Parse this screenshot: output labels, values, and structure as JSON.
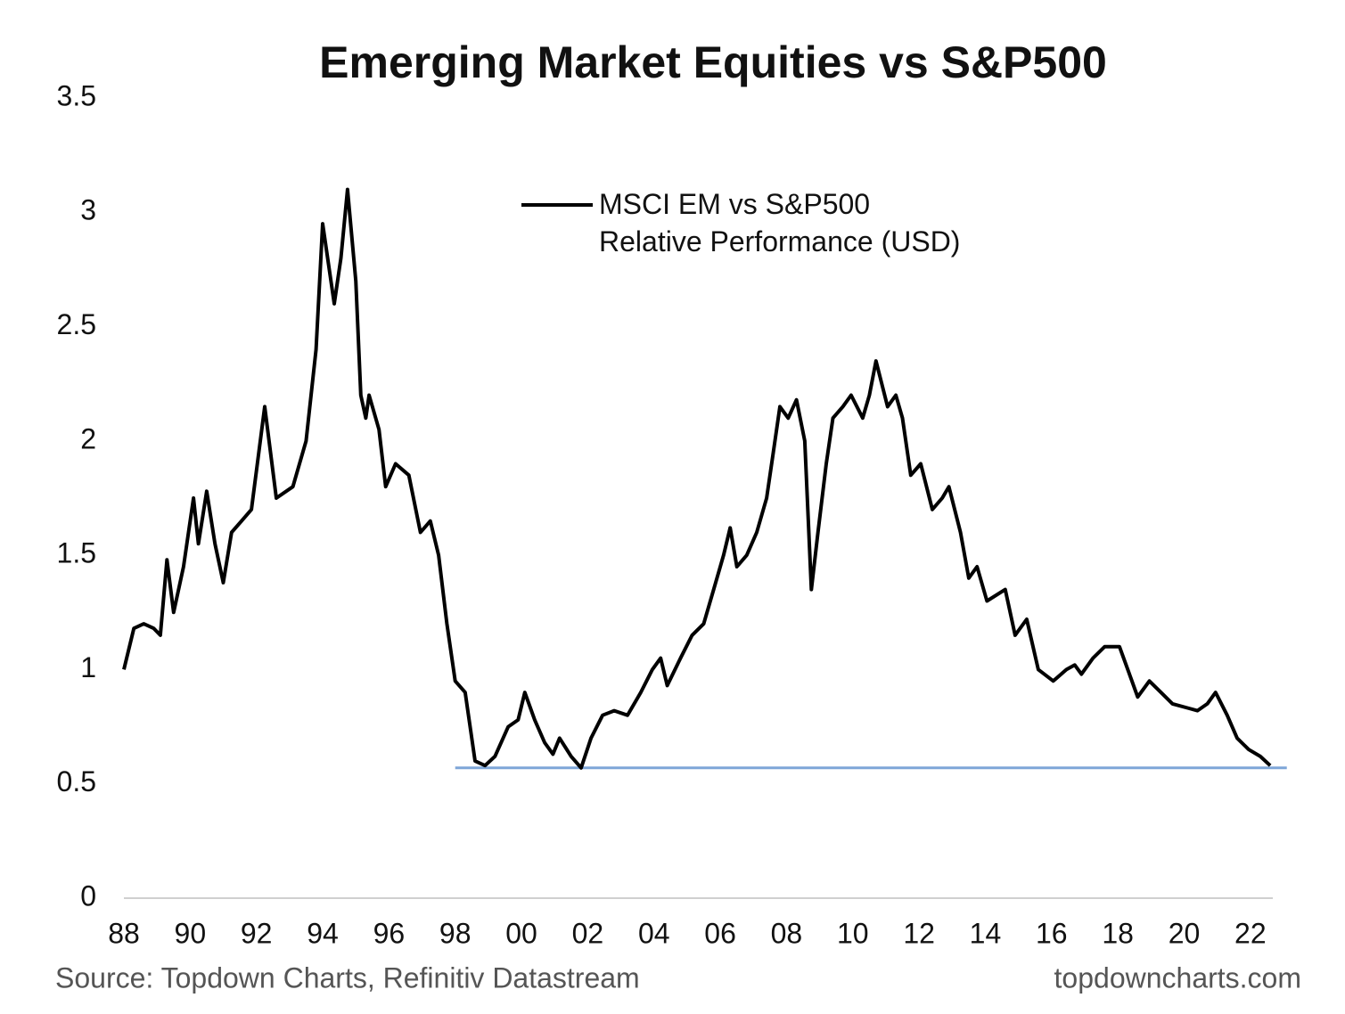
{
  "chart_data": {
    "type": "line",
    "title": "Emerging Market Equities vs S&P500",
    "source": "Source: Topdown Charts, Refinitiv Datastream",
    "credit": "topdowncharts.com",
    "series": [
      {
        "name": "MSCI EM vs S&P500\nRelative Performance (USD)",
        "color": "#000000",
        "values": [
          1.0,
          1.18,
          1.2,
          1.18,
          1.15,
          1.48,
          1.25,
          1.45,
          1.75,
          1.55,
          1.78,
          1.55,
          1.38,
          1.6,
          1.65,
          1.7,
          2.15,
          1.75,
          1.8,
          2.0,
          2.4,
          2.95,
          2.6,
          2.8,
          3.1,
          2.7,
          2.2,
          2.1,
          2.2,
          2.05,
          1.8,
          1.9,
          1.85,
          1.6,
          1.65,
          1.5,
          1.2,
          0.95,
          0.9,
          0.6,
          0.58,
          0.62,
          0.75,
          0.78,
          0.9,
          0.78,
          0.68,
          0.63,
          0.7,
          0.62,
          0.57,
          0.7,
          0.8,
          0.82,
          0.8,
          0.9,
          1.0,
          1.05,
          0.93,
          1.05,
          1.15,
          1.2,
          1.35,
          1.5,
          1.62,
          1.45,
          1.5,
          1.6,
          1.75,
          1.95,
          2.15,
          2.1,
          2.18,
          2.0,
          1.35,
          1.6,
          1.9,
          2.1,
          2.15,
          2.2,
          2.1,
          2.2,
          2.35,
          2.15,
          2.2,
          2.1,
          1.85,
          1.9,
          1.7,
          1.75,
          1.8,
          1.6,
          1.4,
          1.45,
          1.3,
          1.35,
          1.15,
          1.22,
          1.0,
          0.95,
          1.0,
          1.02,
          0.98,
          1.05,
          1.1,
          1.1,
          1.0,
          0.88,
          0.95,
          0.9,
          0.85,
          0.83,
          0.82,
          0.85,
          0.9,
          0.8,
          0.7,
          0.65,
          0.62,
          0.58
        ]
      }
    ],
    "x": [
      1988.0,
      1988.3,
      1988.6,
      1988.9,
      1989.1,
      1989.3,
      1989.5,
      1989.8,
      1990.1,
      1990.25,
      1990.5,
      1990.75,
      1991.0,
      1991.25,
      1991.55,
      1991.85,
      1992.25,
      1992.6,
      1993.1,
      1993.5,
      1993.8,
      1994.0,
      1994.35,
      1994.55,
      1994.75,
      1995.0,
      1995.15,
      1995.3,
      1995.4,
      1995.7,
      1995.9,
      1996.2,
      1996.6,
      1996.95,
      1997.25,
      1997.5,
      1997.75,
      1998.0,
      1998.3,
      1998.6,
      1998.9,
      1999.2,
      1999.6,
      1999.9,
      2000.1,
      2000.4,
      2000.7,
      2000.95,
      2001.15,
      2001.5,
      2001.8,
      2002.1,
      2002.45,
      2002.8,
      2003.2,
      2003.6,
      2003.95,
      2004.2,
      2004.4,
      2004.8,
      2005.15,
      2005.5,
      2005.8,
      2006.1,
      2006.3,
      2006.5,
      2006.8,
      2007.1,
      2007.4,
      2007.6,
      2007.8,
      2008.05,
      2008.3,
      2008.55,
      2008.75,
      2008.95,
      2009.2,
      2009.4,
      2009.7,
      2009.95,
      2010.3,
      2010.5,
      2010.7,
      2011.05,
      2011.3,
      2011.5,
      2011.75,
      2012.05,
      2012.4,
      2012.7,
      2012.9,
      2013.25,
      2013.5,
      2013.75,
      2014.05,
      2014.6,
      2014.9,
      2015.25,
      2015.6,
      2016.05,
      2016.45,
      2016.7,
      2016.9,
      2017.25,
      2017.6,
      2018.05,
      2018.3,
      2018.6,
      2018.95,
      2019.3,
      2019.65,
      2020.15,
      2020.4,
      2020.7,
      2020.95,
      2021.3,
      2021.6,
      2021.95,
      2022.3,
      2022.6
    ],
    "xlim": [
      1988,
      2023
    ],
    "xticks": [
      {
        "value": 1988,
        "label": "88"
      },
      {
        "value": 1990,
        "label": "90"
      },
      {
        "value": 1992,
        "label": "92"
      },
      {
        "value": 1994,
        "label": "94"
      },
      {
        "value": 1996,
        "label": "96"
      },
      {
        "value": 1998,
        "label": "98"
      },
      {
        "value": 2000,
        "label": "00"
      },
      {
        "value": 2002,
        "label": "02"
      },
      {
        "value": 2004,
        "label": "04"
      },
      {
        "value": 2006,
        "label": "06"
      },
      {
        "value": 2008,
        "label": "08"
      },
      {
        "value": 2010,
        "label": "10"
      },
      {
        "value": 2012,
        "label": "12"
      },
      {
        "value": 2014,
        "label": "14"
      },
      {
        "value": 2016,
        "label": "16"
      },
      {
        "value": 2018,
        "label": "18"
      },
      {
        "value": 2020,
        "label": "20"
      },
      {
        "value": 2022,
        "label": "22"
      }
    ],
    "ylim": [
      0,
      3.5
    ],
    "yticks": [
      0,
      0.5,
      1,
      1.5,
      2,
      2.5,
      3,
      3.5
    ],
    "grid": false,
    "reference_line": {
      "y": 0.57,
      "x": [
        1998,
        2023.1
      ],
      "color": "#7ea6d8"
    }
  }
}
